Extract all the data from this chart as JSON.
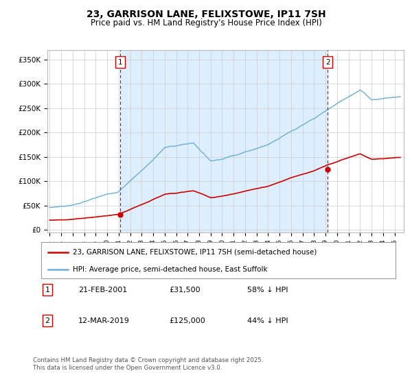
{
  "title": "23, GARRISON LANE, FELIXSTOWE, IP11 7SH",
  "subtitle": "Price paid vs. HM Land Registry's House Price Index (HPI)",
  "ylabel_ticks": [
    "£0",
    "£50K",
    "£100K",
    "£150K",
    "£200K",
    "£250K",
    "£300K",
    "£350K"
  ],
  "ytick_vals": [
    0,
    50000,
    100000,
    150000,
    200000,
    250000,
    300000,
    350000
  ],
  "ylim": [
    -5000,
    370000
  ],
  "xlim_start": 1994.8,
  "xlim_end": 2025.8,
  "hpi_color": "#6baed6",
  "hpi_fill_color": "#ddeeff",
  "price_color": "#cc0000",
  "vline_color": "#cc0000",
  "transaction1_x": 2001.12,
  "transaction1_y": 31500,
  "transaction2_x": 2019.19,
  "transaction2_y": 125000,
  "legend_line1": "23, GARRISON LANE, FELIXSTOWE, IP11 7SH (semi-detached house)",
  "legend_line2": "HPI: Average price, semi-detached house, East Suffolk",
  "footnote": "Contains HM Land Registry data © Crown copyright and database right 2025.\nThis data is licensed under the Open Government Licence v3.0.",
  "background_color": "#ffffff",
  "grid_color": "#cccccc",
  "plot_bg_color": "#f0f4ff"
}
